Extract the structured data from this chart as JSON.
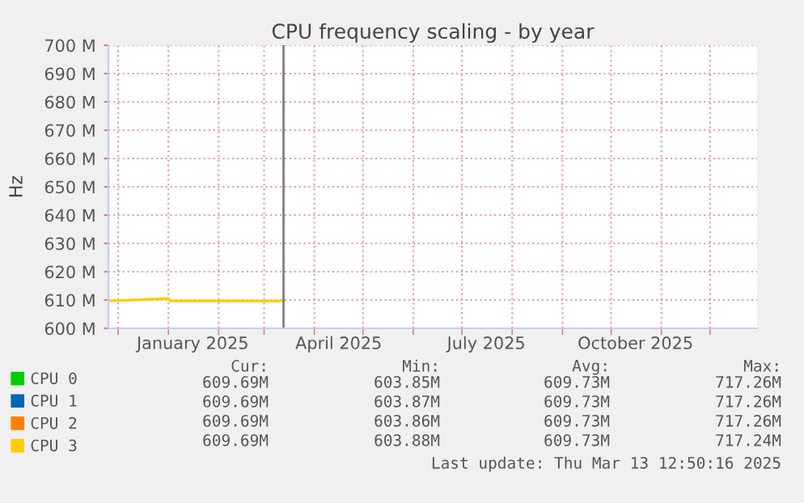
{
  "chart_data": {
    "type": "line",
    "title": "CPU frequency scaling - by year",
    "ylabel": "Hz",
    "x": [
      "2024-11-25",
      "2025-01-01",
      "2025-01-02",
      "2025-03-13"
    ],
    "series": [
      {
        "name": "CPU 0",
        "color": "#00cc00",
        "values": [
          null,
          null,
          null,
          null
        ]
      },
      {
        "name": "CPU 1",
        "color": "#0066b3",
        "values": [
          null,
          null,
          null,
          null
        ]
      },
      {
        "name": "CPU 2",
        "color": "#ff8000",
        "values": [
          null,
          null,
          null,
          null
        ]
      },
      {
        "name": "CPU 3",
        "color": "#ffcc00",
        "values": [
          609.7,
          610.5,
          609.7,
          609.7
        ]
      }
    ],
    "xlim": [
      "2024-11-25",
      "2025-12-30"
    ],
    "xticks": [
      {
        "value": "2024-12-01",
        "label": null
      },
      {
        "value": "2025-01-01",
        "label": null
      },
      {
        "value": "2025-01-16",
        "label": "January 2025"
      },
      {
        "value": "2025-02-01",
        "label": null
      },
      {
        "value": "2025-03-01",
        "label": null
      },
      {
        "value": "2025-04-01",
        "label": null
      },
      {
        "value": "2025-04-16",
        "label": "April 2025"
      },
      {
        "value": "2025-05-01",
        "label": null
      },
      {
        "value": "2025-06-01",
        "label": null
      },
      {
        "value": "2025-07-01",
        "label": null
      },
      {
        "value": "2025-07-16",
        "label": "July 2025"
      },
      {
        "value": "2025-08-01",
        "label": null
      },
      {
        "value": "2025-09-01",
        "label": null
      },
      {
        "value": "2025-10-01",
        "label": null
      },
      {
        "value": "2025-10-16",
        "label": "October 2025"
      },
      {
        "value": "2025-11-01",
        "label": null
      },
      {
        "value": "2025-12-01",
        "label": null
      }
    ],
    "ylim": [
      600,
      700
    ],
    "yticks": [
      {
        "value": 600,
        "label": "600 M"
      },
      {
        "value": 610,
        "label": "610 M"
      },
      {
        "value": 620,
        "label": "620 M"
      },
      {
        "value": 630,
        "label": "630 M"
      },
      {
        "value": 640,
        "label": "640 M"
      },
      {
        "value": 650,
        "label": "650 M"
      },
      {
        "value": 660,
        "label": "660 M"
      },
      {
        "value": 670,
        "label": "670 M"
      },
      {
        "value": 680,
        "label": "680 M"
      },
      {
        "value": 690,
        "label": "690 M"
      },
      {
        "value": 700,
        "label": "700 M"
      }
    ],
    "ref_lines": [
      {
        "axis": "x",
        "value": "2025-03-13",
        "color": "#808080"
      }
    ],
    "grid": true,
    "legend": "bottom",
    "marker": "none",
    "line_style": "solid",
    "annotations": [
      "Cur:",
      "Min:",
      "Avg:",
      "Max:",
      "609.69M",
      "603.85M",
      "609.73M",
      "717.26M",
      "609.69M",
      "603.87M",
      "609.73M",
      "717.26M",
      "609.69M",
      "603.86M",
      "609.73M",
      "717.26M",
      "609.69M",
      "603.88M",
      "609.73M",
      "717.24M",
      "Last update: Thu Mar 13 12:50:16 2025"
    ]
  }
}
